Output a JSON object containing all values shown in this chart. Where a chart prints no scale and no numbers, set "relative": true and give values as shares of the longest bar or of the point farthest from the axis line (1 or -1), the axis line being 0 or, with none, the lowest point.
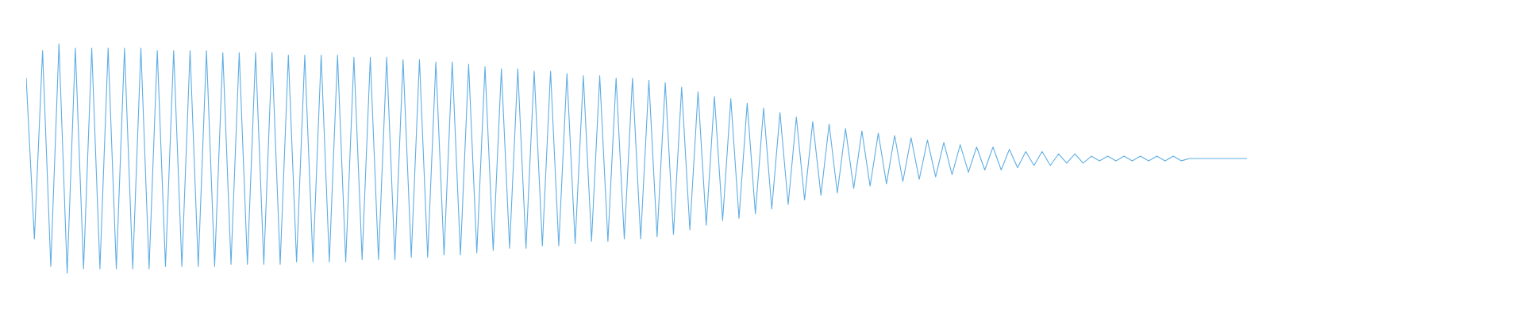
{
  "chart_data": {
    "type": "line",
    "relative": true,
    "categories": [
      null,
      null,
      null,
      null,
      null,
      null,
      null,
      null,
      null,
      null,
      null,
      null,
      null,
      null,
      null,
      null,
      null,
      null,
      null,
      null,
      null,
      null,
      null,
      null,
      null,
      null,
      null,
      null,
      null,
      null,
      null,
      null,
      null,
      null,
      null,
      null,
      null,
      null,
      null,
      null,
      null,
      null,
      null,
      null,
      null,
      null,
      null,
      null,
      null,
      null,
      null,
      null,
      null,
      null,
      null,
      null,
      null,
      null,
      null,
      null,
      null,
      null,
      null,
      null,
      null,
      null,
      null,
      null,
      null,
      null,
      null,
      null,
      null,
      null,
      null,
      null,
      null,
      null,
      null,
      null,
      null,
      null,
      null,
      null,
      null,
      null,
      null,
      null,
      null,
      null,
      null,
      null,
      null,
      null,
      null,
      null,
      null,
      null,
      null,
      null,
      null,
      null,
      null,
      null,
      null,
      null,
      null,
      null,
      null,
      null,
      null,
      null,
      null,
      null,
      null,
      null,
      null,
      null,
      null,
      null,
      null,
      null,
      null,
      null,
      null,
      null,
      null,
      null,
      null,
      null,
      null,
      null,
      null,
      null,
      null,
      null,
      null,
      null,
      null,
      null,
      null,
      null,
      null,
      null,
      null,
      null,
      null,
      null,
      null,
      null
    ],
    "series": [
      {
        "color": "#60aee4",
        "values": [
          0.85,
          0.15,
          0.97,
          0.03,
          1.0,
          0.0,
          0.98,
          0.02,
          0.98,
          0.02,
          0.98,
          0.02,
          0.98,
          0.02,
          0.98,
          0.02,
          0.97,
          0.03,
          0.97,
          0.03,
          0.97,
          0.03,
          0.97,
          0.03,
          0.96,
          0.04,
          0.96,
          0.04,
          0.96,
          0.04,
          0.96,
          0.04,
          0.95,
          0.05,
          0.95,
          0.05,
          0.95,
          0.05,
          0.95,
          0.05,
          0.94,
          0.06,
          0.94,
          0.06,
          0.94,
          0.06,
          0.93,
          0.07,
          0.93,
          0.07,
          0.92,
          0.08,
          0.92,
          0.08,
          0.91,
          0.09,
          0.9,
          0.1,
          0.89,
          0.11,
          0.89,
          0.11,
          0.88,
          0.12,
          0.88,
          0.12,
          0.87,
          0.13,
          0.86,
          0.14,
          0.86,
          0.14,
          0.85,
          0.15,
          0.85,
          0.15,
          0.84,
          0.16,
          0.83,
          0.17,
          0.81,
          0.19,
          0.79,
          0.21,
          0.77,
          0.23,
          0.76,
          0.24,
          0.74,
          0.26,
          0.72,
          0.28,
          0.7,
          0.3,
          0.68,
          0.32,
          0.66,
          0.34,
          0.65,
          0.35,
          0.63,
          0.37,
          0.62,
          0.38,
          0.61,
          0.39,
          0.6,
          0.4,
          0.59,
          0.41,
          0.58,
          0.42,
          0.57,
          0.43,
          0.56,
          0.44,
          0.55,
          0.45,
          0.55,
          0.45,
          0.54,
          0.46,
          0.53,
          0.47,
          0.53,
          0.47,
          0.52,
          0.48,
          0.52,
          0.48,
          0.51,
          0.49,
          0.51,
          0.49,
          0.51,
          0.49,
          0.51,
          0.49,
          0.51,
          0.49,
          0.51,
          0.49,
          0.5,
          0.5,
          0.5,
          0.5,
          0.5,
          0.5,
          0.5,
          0.5
        ]
      }
    ]
  }
}
